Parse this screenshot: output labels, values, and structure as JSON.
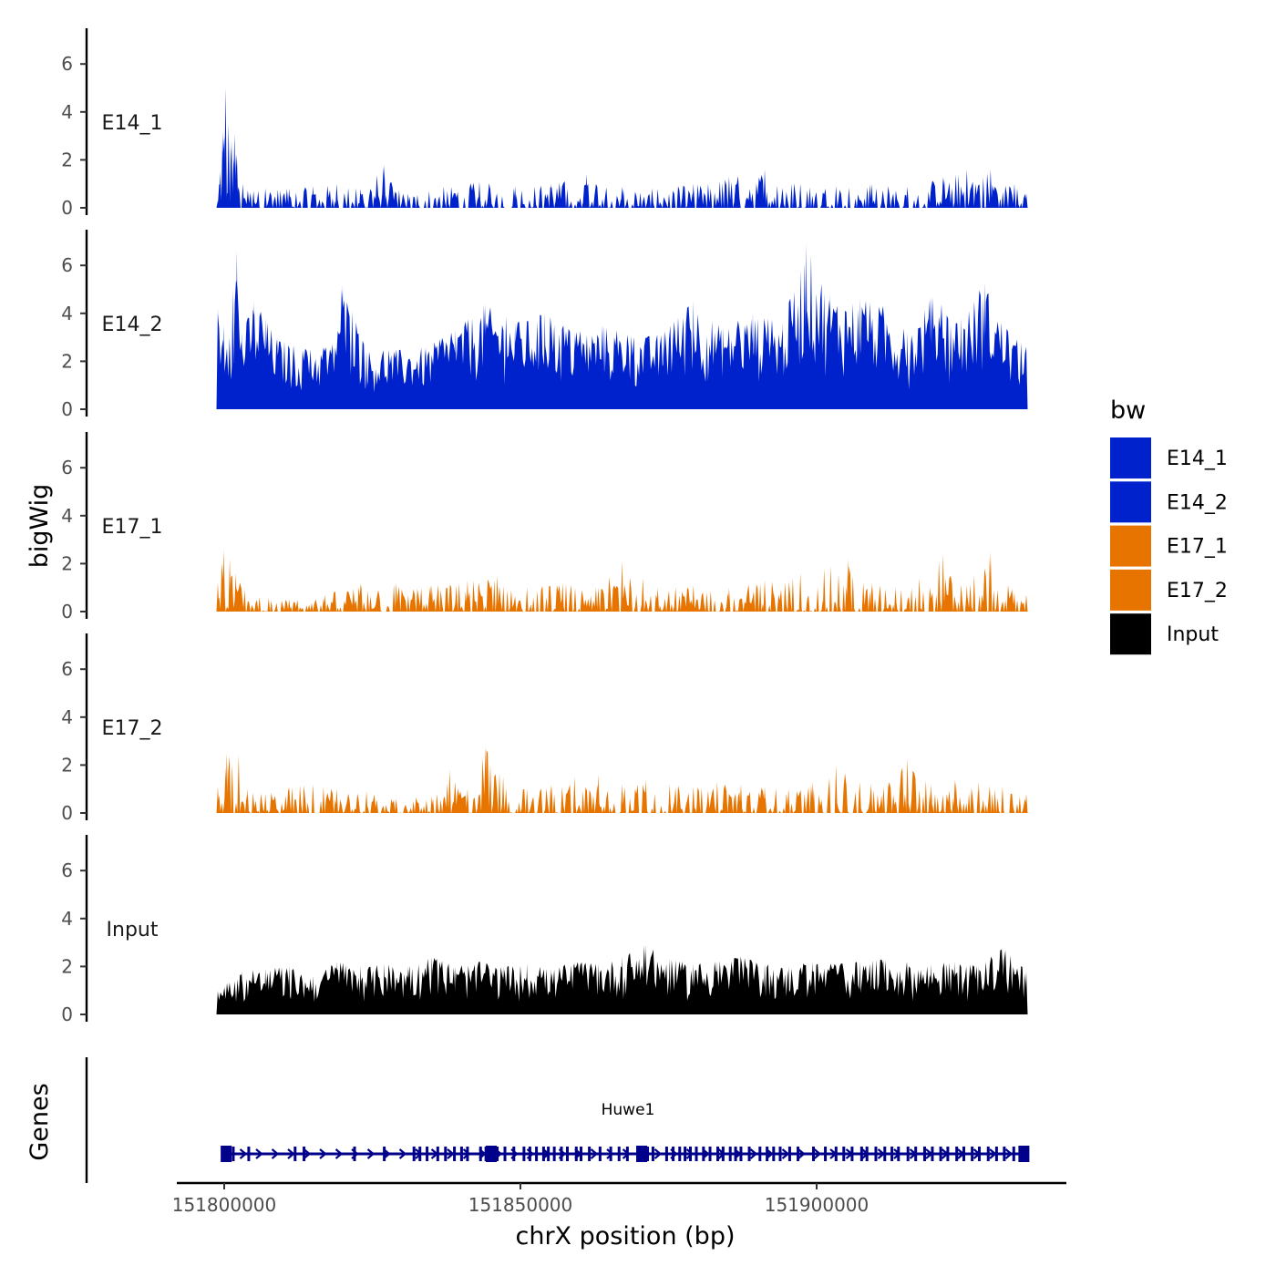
{
  "chart_data": {
    "type": "area",
    "title": "",
    "xlabel": "chrX position (bp)",
    "ylabel": "bigWig",
    "genes_label": "Genes",
    "x_range": [
      151800000,
      151936000
    ],
    "x_ticks": [
      151800000,
      151850000,
      151900000
    ],
    "x_tick_labels": [
      "151800000",
      "151850000",
      "151900000"
    ],
    "ylim": [
      0,
      7.2
    ],
    "y_ticks": [
      0,
      2,
      4,
      6
    ],
    "y_tick_labels": [
      "0",
      "2",
      "4",
      "6"
    ],
    "legend": {
      "title": "bw",
      "entries": [
        {
          "label": "E14_1",
          "color": "#0022CC"
        },
        {
          "label": "E14_2",
          "color": "#0022CC"
        },
        {
          "label": "E17_1",
          "color": "#E87400"
        },
        {
          "label": "E17_2",
          "color": "#E87400"
        },
        {
          "label": "Input",
          "color": "#000000"
        }
      ]
    },
    "tracks": [
      {
        "name": "E14_1",
        "color": "#0022CC",
        "profile": [
          [
            151800000,
            0.3
          ],
          [
            151800400,
            1.5
          ],
          [
            151800800,
            3.2
          ],
          [
            151801300,
            5.0
          ],
          [
            151801800,
            3.5
          ],
          [
            151802300,
            2.8
          ],
          [
            151802800,
            3.1
          ],
          [
            151803200,
            2.2
          ],
          [
            151803600,
            0.8
          ],
          [
            151804200,
            1.0
          ],
          [
            151806000,
            0.7
          ],
          [
            151808000,
            0.8
          ],
          [
            151812000,
            0.8
          ],
          [
            151816000,
            0.9
          ],
          [
            151820000,
            1.0
          ],
          [
            151824000,
            0.8
          ],
          [
            151828000,
            1.8
          ],
          [
            151832000,
            0.6
          ],
          [
            151838000,
            0.9
          ],
          [
            151844000,
            1.1
          ],
          [
            151850000,
            0.9
          ],
          [
            151856000,
            1.0
          ],
          [
            151862000,
            1.4
          ],
          [
            151868000,
            0.9
          ],
          [
            151874000,
            0.8
          ],
          [
            151880000,
            1.0
          ],
          [
            151886000,
            1.3
          ],
          [
            151892000,
            1.6
          ],
          [
            151898000,
            1.0
          ],
          [
            151904000,
            0.9
          ],
          [
            151910000,
            1.0
          ],
          [
            151916000,
            0.9
          ],
          [
            151922000,
            1.3
          ],
          [
            151926000,
            1.6
          ],
          [
            151930000,
            1.6
          ],
          [
            151934000,
            1.0
          ],
          [
            151936000,
            0.6
          ]
        ]
      },
      {
        "name": "E14_2",
        "color": "#0022CC",
        "profile": [
          [
            151800000,
            4.2
          ],
          [
            151801000,
            3.5
          ],
          [
            151802500,
            5.0
          ],
          [
            151803200,
            6.6
          ],
          [
            151804000,
            3.2
          ],
          [
            151806000,
            4.5
          ],
          [
            151808000,
            3.8
          ],
          [
            151810000,
            3.0
          ],
          [
            151815000,
            2.5
          ],
          [
            151819000,
            2.6
          ],
          [
            151821000,
            5.2
          ],
          [
            151825000,
            2.4
          ],
          [
            151830000,
            2.5
          ],
          [
            151835000,
            2.6
          ],
          [
            151840000,
            3.3
          ],
          [
            151845000,
            4.4
          ],
          [
            151850000,
            3.6
          ],
          [
            151855000,
            4.0
          ],
          [
            151860000,
            3.2
          ],
          [
            151865000,
            3.5
          ],
          [
            151870000,
            3.0
          ],
          [
            151875000,
            3.2
          ],
          [
            151880000,
            4.5
          ],
          [
            151885000,
            3.4
          ],
          [
            151890000,
            4.0
          ],
          [
            151895000,
            3.6
          ],
          [
            151899000,
            6.9
          ],
          [
            151903000,
            4.8
          ],
          [
            151908000,
            4.6
          ],
          [
            151912000,
            4.3
          ],
          [
            151916000,
            3.2
          ],
          [
            151920000,
            4.7
          ],
          [
            151925000,
            3.8
          ],
          [
            151929000,
            5.3
          ],
          [
            151933000,
            3.2
          ],
          [
            151936000,
            2.6
          ]
        ]
      },
      {
        "name": "E17_1",
        "color": "#E87400",
        "profile": [
          [
            151800000,
            1.2
          ],
          [
            151801000,
            2.6
          ],
          [
            151802000,
            2.2
          ],
          [
            151803000,
            1.6
          ],
          [
            151804500,
            0.9
          ],
          [
            151807000,
            0.6
          ],
          [
            151812000,
            0.5
          ],
          [
            151818000,
            0.7
          ],
          [
            151824000,
            1.2
          ],
          [
            151830000,
            1.2
          ],
          [
            151836000,
            1.1
          ],
          [
            151842000,
            1.3
          ],
          [
            151847000,
            1.5
          ],
          [
            151852000,
            1.0
          ],
          [
            151858000,
            1.2
          ],
          [
            151864000,
            1.0
          ],
          [
            151868000,
            2.1
          ],
          [
            151874000,
            1.0
          ],
          [
            151880000,
            1.1
          ],
          [
            151886000,
            1.0
          ],
          [
            151892000,
            1.3
          ],
          [
            151898000,
            1.6
          ],
          [
            151902000,
            1.8
          ],
          [
            151906000,
            2.2
          ],
          [
            151910000,
            1.2
          ],
          [
            151914000,
            1.0
          ],
          [
            151918000,
            1.4
          ],
          [
            151922000,
            2.4
          ],
          [
            151926000,
            1.1
          ],
          [
            151930000,
            2.5
          ],
          [
            151934000,
            0.8
          ],
          [
            151936000,
            0.7
          ]
        ]
      },
      {
        "name": "E17_2",
        "color": "#E87400",
        "profile": [
          [
            151800000,
            1.1
          ],
          [
            151801500,
            2.5
          ],
          [
            151803500,
            2.4
          ],
          [
            151805000,
            1.0
          ],
          [
            151808000,
            0.8
          ],
          [
            151812000,
            1.1
          ],
          [
            151816000,
            1.2
          ],
          [
            151820000,
            1.0
          ],
          [
            151825000,
            0.9
          ],
          [
            151830000,
            0.6
          ],
          [
            151836000,
            0.7
          ],
          [
            151839000,
            1.8
          ],
          [
            151842000,
            1.0
          ],
          [
            151845000,
            2.8
          ],
          [
            151848000,
            1.5
          ],
          [
            151852000,
            1.0
          ],
          [
            151856000,
            1.2
          ],
          [
            151860000,
            1.5
          ],
          [
            151864000,
            1.6
          ],
          [
            151868000,
            1.2
          ],
          [
            151872000,
            1.4
          ],
          [
            151876000,
            1.2
          ],
          [
            151880000,
            1.1
          ],
          [
            151884000,
            1.3
          ],
          [
            151888000,
            1.2
          ],
          [
            151892000,
            1.1
          ],
          [
            151896000,
            1.0
          ],
          [
            151900000,
            1.3
          ],
          [
            151904000,
            2.0
          ],
          [
            151908000,
            1.3
          ],
          [
            151912000,
            1.1
          ],
          [
            151916000,
            2.3
          ],
          [
            151920000,
            1.2
          ],
          [
            151924000,
            1.4
          ],
          [
            151928000,
            1.3
          ],
          [
            151932000,
            1.1
          ],
          [
            151936000,
            0.8
          ]
        ]
      },
      {
        "name": "Input",
        "color": "#000000",
        "profile": [
          [
            151800000,
            1.0
          ],
          [
            151804000,
            1.8
          ],
          [
            151808000,
            1.9
          ],
          [
            151812000,
            2.0
          ],
          [
            151816000,
            1.6
          ],
          [
            151820000,
            2.2
          ],
          [
            151824000,
            2.0
          ],
          [
            151828000,
            2.1
          ],
          [
            151832000,
            2.0
          ],
          [
            151836000,
            2.4
          ],
          [
            151840000,
            2.0
          ],
          [
            151844000,
            2.2
          ],
          [
            151848000,
            2.0
          ],
          [
            151852000,
            2.1
          ],
          [
            151856000,
            1.9
          ],
          [
            151860000,
            2.2
          ],
          [
            151864000,
            2.1
          ],
          [
            151868000,
            2.4
          ],
          [
            151872000,
            2.9
          ],
          [
            151876000,
            2.3
          ],
          [
            151880000,
            2.1
          ],
          [
            151884000,
            2.2
          ],
          [
            151888000,
            2.4
          ],
          [
            151892000,
            2.1
          ],
          [
            151896000,
            2.0
          ],
          [
            151900000,
            2.2
          ],
          [
            151904000,
            2.1
          ],
          [
            151908000,
            2.2
          ],
          [
            151912000,
            2.3
          ],
          [
            151916000,
            2.2
          ],
          [
            151920000,
            2.1
          ],
          [
            151924000,
            2.2
          ],
          [
            151928000,
            2.0
          ],
          [
            151932000,
            2.8
          ],
          [
            151936000,
            1.8
          ]
        ]
      }
    ],
    "gene_track": {
      "gene_name": "Huwe1",
      "color": "#00008B",
      "strand": "+",
      "start": 151800000,
      "end": 151936000,
      "exons": [
        151801100,
        151801400,
        151802600,
        151805200,
        151813000,
        151814500,
        151823000,
        151828000,
        151833000,
        151834000,
        151835200,
        151837000,
        151838300,
        151839800,
        151841000,
        151842000,
        151844200,
        151845100,
        151845700,
        151846400,
        151847000,
        151848300,
        151849800,
        151851500,
        151852500,
        151853600,
        151854800,
        151855600,
        151856600,
        151857800,
        151858800,
        151860300,
        151861100,
        151862500,
        151864300,
        151866100,
        151867500,
        151868900,
        151871100,
        151871500,
        151872300,
        151873200,
        151875500,
        151876600,
        151877700,
        151878600,
        151879500,
        151880500,
        151881700,
        151882800,
        151884100,
        151885000,
        151886200,
        151887100,
        151888000,
        151889400,
        151891200,
        151892400,
        151893500,
        151894600,
        151896200,
        151897600,
        151900200,
        151902200,
        151904000,
        151905300,
        151906700,
        151908300,
        151909200,
        151910700,
        151912200,
        151913400,
        151914500,
        151916100,
        151917400,
        151918900,
        151920200,
        151921600,
        151922800,
        151924300,
        151925500,
        151926900,
        151928100,
        151929600,
        151931000,
        151932300,
        151933900,
        151935300,
        151935900
      ],
      "large_exons": [
        151801400,
        151846000,
        151871300,
        151935600
      ]
    }
  }
}
